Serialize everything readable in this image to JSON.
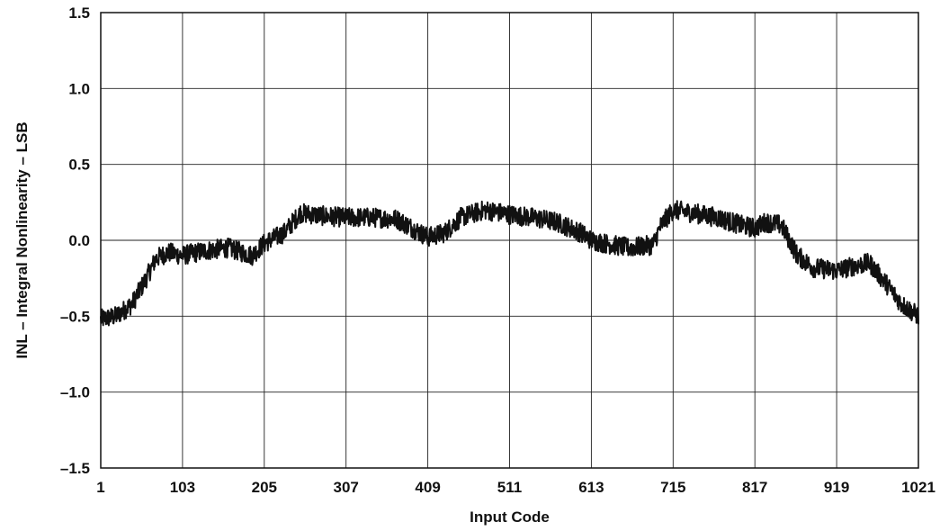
{
  "chart_data": {
    "type": "line",
    "title": "",
    "xlabel": "Input Code",
    "ylabel": "INL – Integral Nonlinearity – LSB",
    "xlim": [
      1,
      1021
    ],
    "ylim": [
      -1.5,
      1.5
    ],
    "x_ticks": [
      1,
      103,
      205,
      307,
      409,
      511,
      613,
      715,
      817,
      919,
      1021
    ],
    "x_tick_labels": [
      "1",
      "103",
      "205",
      "307",
      "409",
      "511",
      "613",
      "715",
      "817",
      "919",
      "1021"
    ],
    "y_ticks": [
      -1.5,
      -1.0,
      -0.5,
      0.0,
      0.5,
      1.0,
      1.5
    ],
    "y_tick_labels": [
      "–1.5",
      "–1.0",
      "–0.5",
      "0.0",
      "0.5",
      "1.0",
      "1.5"
    ],
    "grid": true,
    "line_color": "#111111",
    "series": [
      {
        "x": [
          1,
          20,
          40,
          55,
          70,
          85,
          103,
          130,
          160,
          190,
          205,
          230,
          250,
          280,
          307,
          340,
          370,
          390,
          409,
          430,
          450,
          480,
          511,
          540,
          570,
          600,
          613,
          630,
          660,
          690,
          700,
          715,
          740,
          770,
          800,
          817,
          830,
          850,
          870,
          890,
          919,
          940,
          960,
          980,
          1000,
          1021
        ],
        "values": [
          -0.52,
          -0.5,
          -0.42,
          -0.28,
          -0.12,
          -0.08,
          -0.1,
          -0.07,
          -0.05,
          -0.1,
          -0.02,
          0.05,
          0.18,
          0.16,
          0.15,
          0.15,
          0.14,
          0.08,
          0.02,
          0.05,
          0.15,
          0.2,
          0.17,
          0.15,
          0.12,
          0.05,
          0.0,
          -0.02,
          -0.05,
          -0.03,
          0.1,
          0.2,
          0.18,
          0.15,
          0.1,
          0.08,
          0.12,
          0.1,
          -0.1,
          -0.18,
          -0.2,
          -0.17,
          -0.15,
          -0.28,
          -0.42,
          -0.5
        ]
      }
    ]
  }
}
